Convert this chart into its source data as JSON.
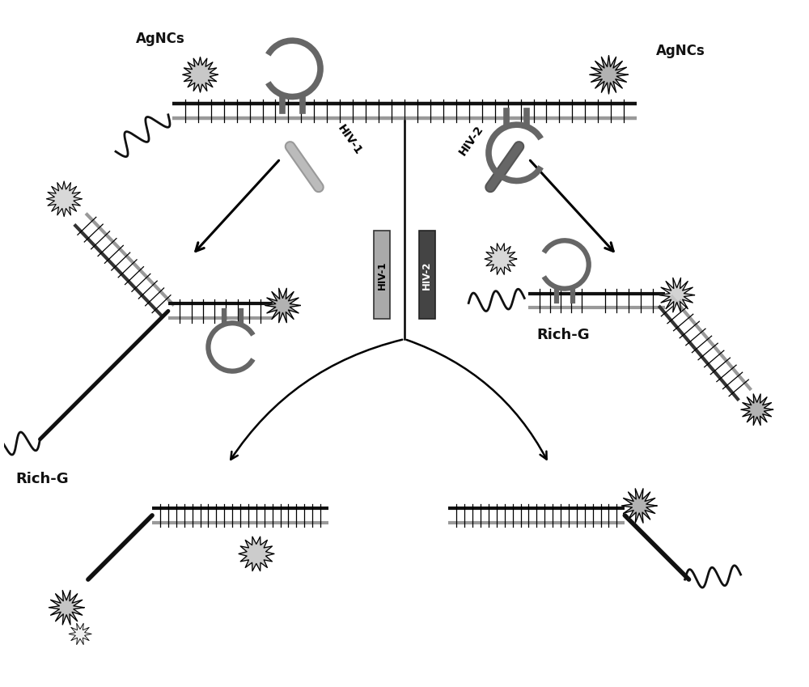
{
  "background_color": "#ffffff",
  "dna_black": "#111111",
  "dna_gray": "#999999",
  "loop_color": "#666666",
  "text_color": "#111111",
  "labels": {
    "agncs_left": "AgNCs",
    "agncs_right": "AgNCs",
    "hiv1_diagonal": "HIV-1",
    "hiv2_diagonal": "HIV-2",
    "hiv1_center": "HIV-1",
    "hiv2_center": "HIV-2",
    "rich_g_left": "Rich-G",
    "rich_g_right": "Rich-G"
  },
  "figsize": [
    10.0,
    8.49
  ]
}
